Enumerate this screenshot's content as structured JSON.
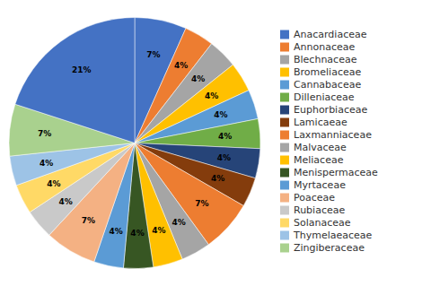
{
  "chart_data": {
    "type": "pie",
    "categories": [
      "Anacardiaceae",
      "Annonaceae",
      "Blechnaceae",
      "Bromeliaceae",
      "Cannabaceae",
      "Dilleniaceae",
      "Euphorbiaceae",
      "Lamicaeae",
      "Laxmanniaceae",
      "Malvaceae",
      "Meliaceae",
      "Menispermaceae",
      "Myrtaceae",
      "Poaceae",
      "Rubiaceae",
      "Solanaceae",
      "Thymelaeaceae",
      "Zingiberaceae",
      null
    ],
    "values": [
      7,
      4,
      4,
      4,
      4,
      4,
      4,
      4,
      7,
      4,
      4,
      4,
      4,
      7,
      4,
      4,
      4,
      7,
      21
    ],
    "value_labels": [
      "7%",
      "4%",
      "4%",
      "4%",
      "4%",
      "4%",
      "4%",
      "4%",
      "7%",
      "4%",
      "4%",
      "4%",
      "4%",
      "7%",
      "4%",
      "4%",
      "4%",
      "7%",
      "21%"
    ],
    "colors": [
      "#4472C4",
      "#ED7D31",
      "#A5A5A5",
      "#FFC000",
      "#5B9BD5",
      "#70AD47",
      "#264478",
      "#843C0C",
      "#ED7D31",
      "#A5A5A5",
      "#FFC000",
      "#375623",
      "#5B9BD5",
      "#F4B183",
      "#C9C9C9",
      "#FFD966",
      "#9DC3E6",
      "#A9D18E",
      "#4472C4"
    ],
    "data_labels": true,
    "legend": "right"
  }
}
